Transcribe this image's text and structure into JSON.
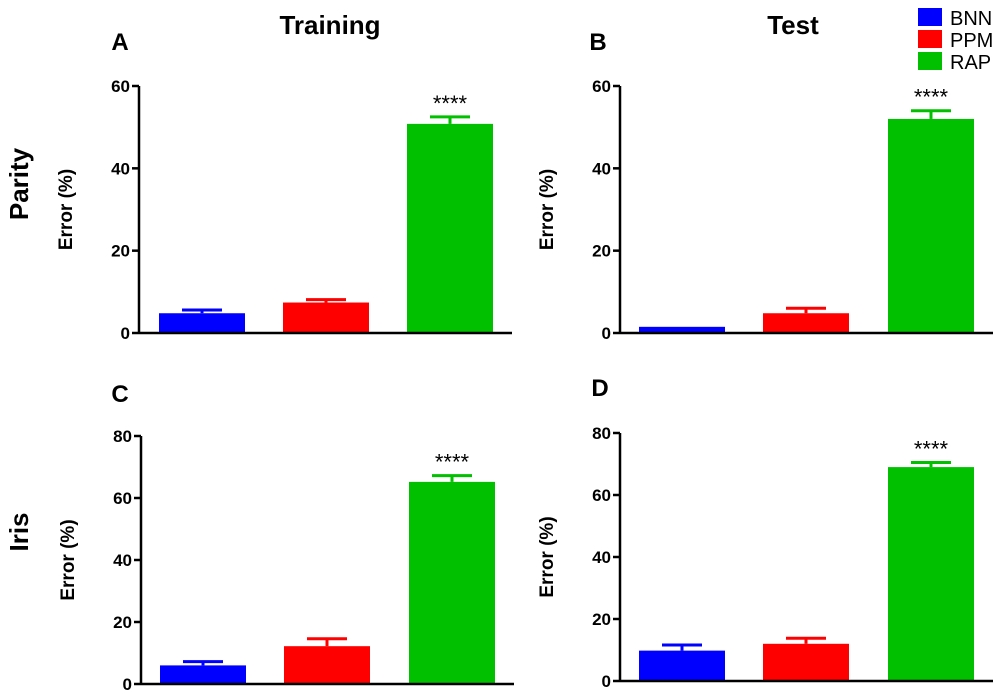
{
  "columns": [
    "Training",
    "Test"
  ],
  "rows": [
    "Parity",
    "Iris"
  ],
  "legend": [
    {
      "label": "BNN",
      "color": "#0000ff"
    },
    {
      "label": "PPM",
      "color": "#ff0000"
    },
    {
      "label": "RAP",
      "color": "#00c000"
    }
  ],
  "chart_data": [
    {
      "type": "bar",
      "panel": "A",
      "categories": [
        "BNN",
        "PPM",
        "RAP"
      ],
      "values": [
        4.8,
        7.4,
        50.8
      ],
      "errors": [
        0.8,
        0.7,
        1.7
      ],
      "colors": [
        "#0000ff",
        "#ff0000",
        "#00c000"
      ],
      "ylabel": "Error (%)",
      "ylim": [
        0,
        60
      ],
      "yticks": [
        0,
        20,
        40,
        60
      ],
      "annotation": {
        "category": "RAP",
        "text": "****"
      }
    },
    {
      "type": "bar",
      "panel": "B",
      "categories": [
        "BNN",
        "PPM",
        "RAP"
      ],
      "values": [
        1.5,
        4.8,
        52.0
      ],
      "errors": [
        0,
        1.2,
        2.0
      ],
      "colors": [
        "#0000ff",
        "#ff0000",
        "#00c000"
      ],
      "ylabel": "Error (%)",
      "ylim": [
        0,
        60
      ],
      "yticks": [
        0,
        20,
        40,
        60
      ],
      "annotation": {
        "category": "RAP",
        "text": "****"
      }
    },
    {
      "type": "bar",
      "panel": "C",
      "categories": [
        "BNN",
        "PPM",
        "RAP"
      ],
      "values": [
        6.0,
        12.2,
        65.2
      ],
      "errors": [
        1.2,
        2.4,
        2.0
      ],
      "colors": [
        "#0000ff",
        "#ff0000",
        "#00c000"
      ],
      "ylabel": "Error (%)",
      "ylim": [
        0,
        80
      ],
      "yticks": [
        0,
        20,
        40,
        60,
        80
      ],
      "annotation": {
        "category": "RAP",
        "text": "****"
      }
    },
    {
      "type": "bar",
      "panel": "D",
      "categories": [
        "BNN",
        "PPM",
        "RAP"
      ],
      "values": [
        9.8,
        12.0,
        69.0
      ],
      "errors": [
        1.8,
        1.8,
        1.5
      ],
      "colors": [
        "#0000ff",
        "#ff0000",
        "#00c000"
      ],
      "ylabel": "Error (%)",
      "ylim": [
        0,
        80
      ],
      "yticks": [
        0,
        20,
        40,
        60,
        80
      ],
      "annotation": {
        "category": "RAP",
        "text": "****"
      }
    }
  ]
}
